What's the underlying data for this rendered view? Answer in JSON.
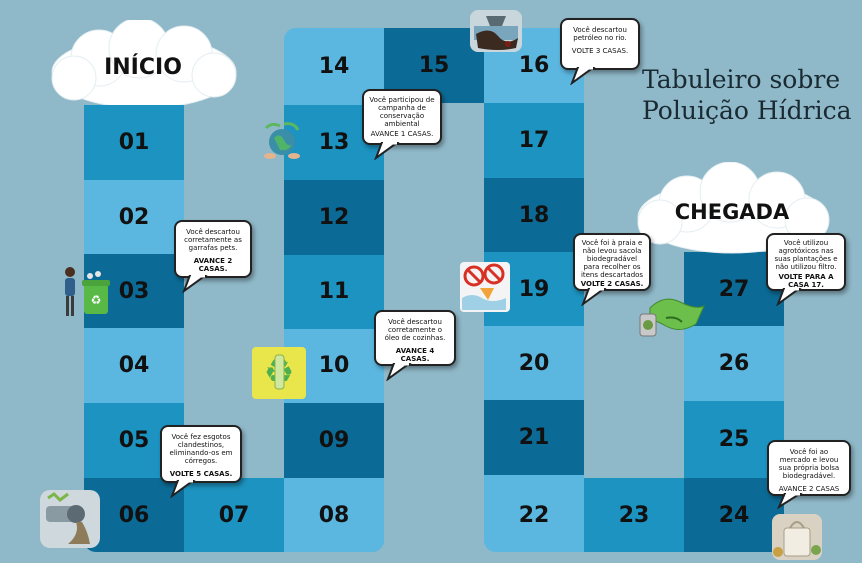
{
  "title": {
    "line1": "Tabuleiro sobre",
    "line2": "Poluição Hídrica"
  },
  "start_label": "INÍCIO",
  "finish_label": "CHEGADA",
  "cells": [
    {
      "n": "01"
    },
    {
      "n": "02"
    },
    {
      "n": "03"
    },
    {
      "n": "04"
    },
    {
      "n": "05"
    },
    {
      "n": "06"
    },
    {
      "n": "07"
    },
    {
      "n": "08"
    },
    {
      "n": "09"
    },
    {
      "n": "10"
    },
    {
      "n": "11"
    },
    {
      "n": "12"
    },
    {
      "n": "13"
    },
    {
      "n": "14"
    },
    {
      "n": "15"
    },
    {
      "n": "16"
    },
    {
      "n": "17"
    },
    {
      "n": "18"
    },
    {
      "n": "19"
    },
    {
      "n": "20"
    },
    {
      "n": "21"
    },
    {
      "n": "22"
    },
    {
      "n": "23"
    },
    {
      "n": "24"
    },
    {
      "n": "25"
    },
    {
      "n": "26"
    },
    {
      "n": "27"
    }
  ],
  "cards": {
    "c03": {
      "text": "Você descartou corretamente as garrafas pets.",
      "action": "AVANCE 2 CASAS."
    },
    "c06": {
      "text": "Você fez esgotos clandestinos, eliminando-os em córregos.",
      "action": "VOLTE 5 CASAS."
    },
    "c10": {
      "text": "Você descartou corretamente o óleo de cozinhas.",
      "action": "AVANCE 4 CASAS."
    },
    "c13": {
      "text": "Você participou de campanha de conservação ambiental",
      "action": "AVANCE 1 CASAS."
    },
    "c16": {
      "text": "Você descartou petróleo no rio.",
      "action": "VOLTE 3 CASAS."
    },
    "c19": {
      "text": "Você foi à praia e não levou sacola biodegradável para recolher os itens descartados",
      "action": "VOLTE 2 CASAS."
    },
    "c24": {
      "text": "Você foi ao mercado e levou sua própria bolsa biodegradável.",
      "action": "AVANCE 2 CASAS"
    },
    "c27": {
      "text": "Você utilizou agrotóxicos nas suas plantações e não utilizou filtro.",
      "action": "VOLTE PARA A CASA 17."
    }
  },
  "icons": [
    "oil-spill-icon",
    "recycle-globe-icon",
    "recycling-person-icon",
    "recycled-bottle-icon",
    "no-plastic-bag-icon",
    "pesticide-land-icon",
    "sewage-pipe-icon",
    "shopping-bag-icon"
  ]
}
